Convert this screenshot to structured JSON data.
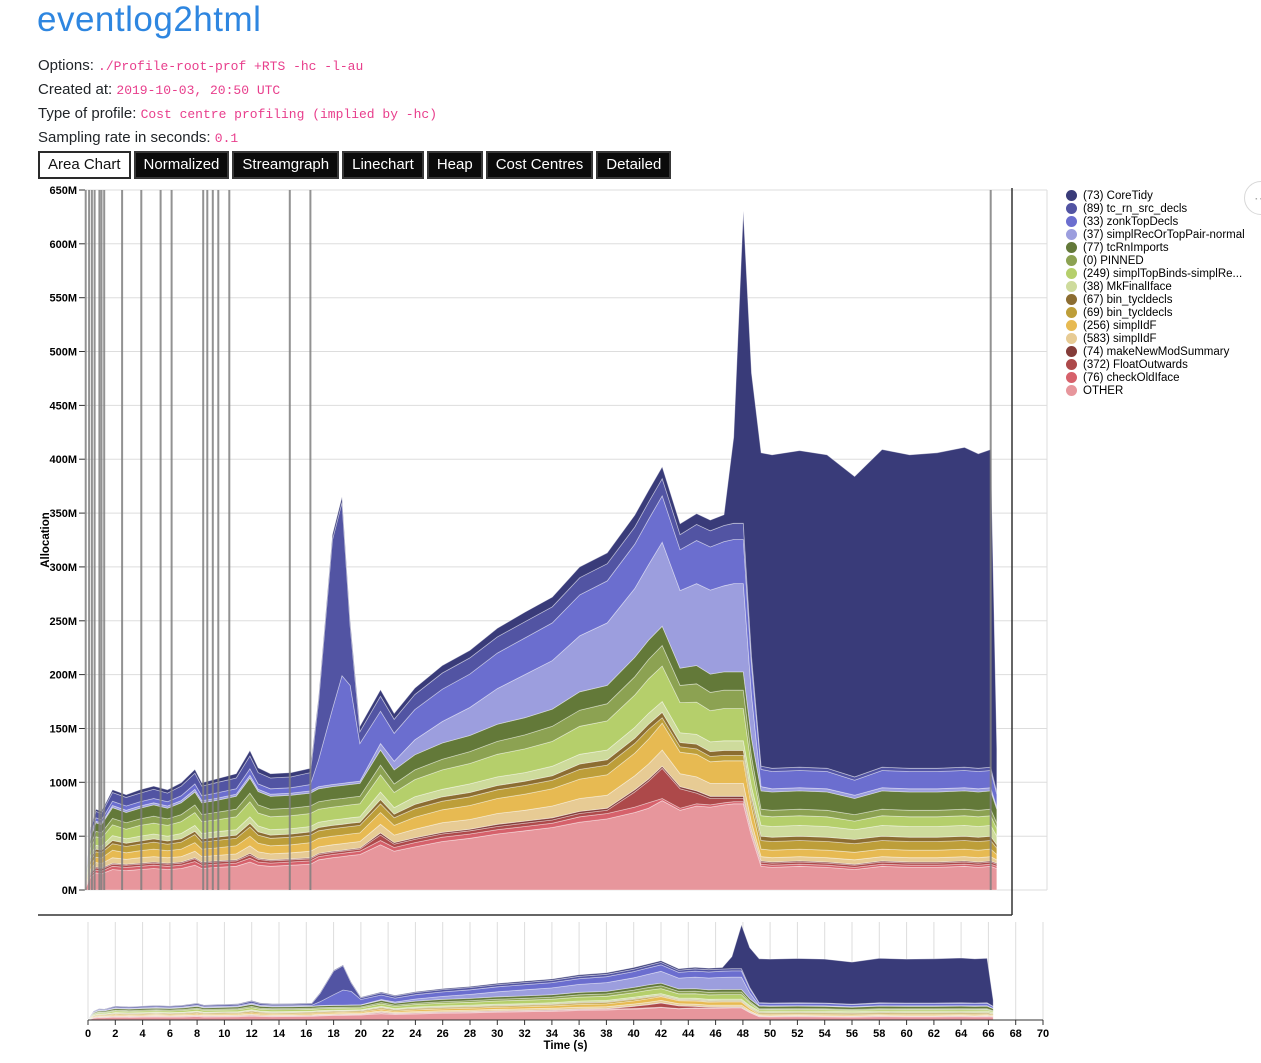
{
  "page": {
    "title": "eventlog2html"
  },
  "meta": [
    {
      "label": "Options: ",
      "value": "./Profile-root-prof +RTS -hc -l-au"
    },
    {
      "label": "Created at: ",
      "value": "2019-10-03, 20:50 UTC"
    },
    {
      "label": "Type of profile: ",
      "value": "Cost centre profiling (implied by -hc)"
    },
    {
      "label": "Sampling rate in seconds: ",
      "value": "0.1"
    }
  ],
  "tabs": [
    {
      "label": "Area Chart",
      "active": true
    },
    {
      "label": "Normalized",
      "active": false
    },
    {
      "label": "Streamgraph",
      "active": false
    },
    {
      "label": "Linechart",
      "active": false
    },
    {
      "label": "Heap",
      "active": false
    },
    {
      "label": "Cost Centres",
      "active": false
    },
    {
      "label": "Detailed",
      "active": false
    }
  ],
  "actions_button": {
    "icon": "ellipsis-menu",
    "glyph": "⋯"
  },
  "chart_data": {
    "type": "area",
    "title": "",
    "xlabel": "Time (s)",
    "ylabel": "Allocation",
    "x_domain": [
      0,
      70
    ],
    "y_domain": [
      0,
      650000000
    ],
    "grid": true,
    "legend_position": "right",
    "y_tick_values": [
      0,
      50,
      100,
      150,
      200,
      250,
      300,
      350,
      400,
      450,
      500,
      550,
      600,
      650
    ],
    "y_tick_labels": [
      "0M",
      "50M",
      "100M",
      "150M",
      "200M",
      "250M",
      "300M",
      "350M",
      "400M",
      "450M",
      "500M",
      "550M",
      "600M",
      "650M"
    ],
    "x_ticks": [
      0,
      2,
      4,
      6,
      8,
      10,
      12,
      14,
      16,
      18,
      20,
      22,
      24,
      26,
      28,
      30,
      32,
      34,
      36,
      38,
      40,
      42,
      44,
      46,
      48,
      50,
      52,
      54,
      56,
      58,
      60,
      62,
      64,
      66,
      68,
      70
    ],
    "event_times": [
      0.05,
      0.3,
      0.5,
      0.7,
      1.05,
      1.2,
      1.4,
      2.7,
      4.1,
      5.5,
      6.3,
      8.6,
      8.9,
      9.3,
      9.7,
      10.5,
      14.9,
      16.4,
      65.9
    ],
    "x": [
      0,
      0.4,
      0.8,
      1.2,
      2,
      3,
      4,
      5,
      6,
      7,
      8,
      8.5,
      9.5,
      11,
      12,
      12.6,
      13.5,
      15,
      16.4,
      17,
      18,
      18.7,
      19.3,
      20,
      21.5,
      22.5,
      24,
      26,
      28,
      30,
      32,
      34,
      36,
      38,
      40,
      41,
      42,
      43.3,
      44.5,
      45.5,
      46.5,
      47.2,
      47.9,
      48.5,
      49.2,
      50,
      52,
      54,
      56,
      58,
      60,
      62,
      64,
      65,
      65.9,
      66.35
    ],
    "units": "MB, stacked bottom-to-top",
    "series": [
      {
        "id": "other",
        "label": "OTHER",
        "color": "#e7969c",
        "values": [
          0.5,
          12,
          16,
          15,
          19,
          18,
          19,
          20,
          19,
          20,
          23,
          20,
          21,
          22,
          26,
          23,
          22,
          23,
          24,
          28,
          30,
          31,
          32,
          33,
          42,
          36,
          40,
          45,
          48,
          52,
          55,
          58,
          63,
          66,
          72,
          76,
          83,
          74,
          78,
          77,
          79,
          80,
          80,
          50,
          22,
          21,
          22,
          21,
          19,
          22,
          21,
          21,
          22,
          21,
          22,
          20
        ]
      },
      {
        "id": "checkOldIface",
        "label": "(76) checkOldIface",
        "color": "#d6616b",
        "values": [
          0.2,
          2,
          2.5,
          2.5,
          3,
          3,
          3,
          3,
          3,
          3,
          3.5,
          3,
          3,
          3,
          3.5,
          3,
          3,
          3,
          3,
          3,
          3,
          3,
          3,
          3,
          4,
          3.5,
          4,
          4,
          4,
          4,
          4,
          4,
          5,
          5,
          5,
          5,
          2,
          2,
          2,
          2,
          2,
          2,
          2,
          2,
          2,
          2,
          2,
          2,
          2,
          2,
          2,
          2,
          2,
          2,
          2,
          2
        ]
      },
      {
        "id": "FloatOutwards",
        "label": "(372) FloatOutwards",
        "color": "#ad494a",
        "values": [
          0.2,
          1.5,
          2,
          2,
          2,
          2,
          2,
          2,
          2,
          2,
          2.5,
          2,
          2,
          2,
          3,
          2.5,
          2,
          2,
          2,
          2,
          2,
          2,
          2,
          2,
          5,
          3,
          3,
          3,
          3,
          3,
          3,
          3,
          3,
          3,
          14,
          20,
          28,
          18,
          10,
          6,
          4,
          3,
          3,
          2,
          2,
          2,
          2,
          2,
          2,
          2,
          2,
          2,
          2,
          2,
          2,
          2
        ]
      },
      {
        "id": "makeNewModSummary",
        "label": "(74) makeNewModSummary",
        "color": "#843c39",
        "values": [
          0.1,
          1,
          1,
          1,
          1,
          1,
          1,
          1,
          1,
          1,
          1,
          1,
          1,
          1,
          1.5,
          1,
          1,
          1,
          1,
          1,
          1,
          1,
          1,
          1,
          2,
          1.5,
          1.5,
          1.5,
          1.5,
          2,
          2,
          2,
          2,
          2,
          2,
          2,
          2,
          2,
          2,
          2,
          2,
          2,
          2,
          1,
          1,
          1,
          1,
          1,
          1,
          1,
          1,
          1,
          1,
          1,
          1,
          1
        ]
      },
      {
        "id": "simplIdF-583",
        "label": "(583) simplIdF",
        "color": "#e7cb94",
        "values": [
          0.1,
          3,
          4,
          4,
          5,
          4.5,
          5,
          5,
          5,
          5,
          6,
          5,
          5,
          5.5,
          7,
          6,
          5.5,
          5.5,
          6,
          6,
          6,
          6,
          6,
          6,
          8,
          7,
          8,
          9,
          9,
          10,
          10,
          11,
          12,
          12,
          13,
          14,
          15,
          12,
          13,
          12,
          12,
          12,
          12,
          8,
          4,
          4,
          4,
          4,
          4,
          4,
          4,
          4,
          4,
          4,
          4,
          3
        ]
      },
      {
        "id": "simplIdF-256",
        "label": "(256) simplIdF",
        "color": "#e7ba52",
        "values": [
          0.2,
          4,
          5,
          5,
          7,
          6,
          6.5,
          7,
          6.5,
          7,
          8,
          7,
          7,
          7.5,
          9,
          8,
          7.5,
          7.5,
          8,
          8,
          8,
          8,
          8,
          8,
          11,
          9,
          11,
          12,
          13,
          14,
          15,
          16,
          18,
          19,
          21,
          23,
          25,
          20,
          21,
          20,
          21,
          21,
          21,
          14,
          7,
          7,
          7,
          7,
          7,
          7,
          7,
          7,
          7,
          7,
          7,
          5
        ]
      },
      {
        "id": "bin_tycldecls-69",
        "label": "(69) bin_tycldecls",
        "color": "#bd9e39",
        "values": [
          0.2,
          4,
          5,
          5,
          6,
          6,
          6,
          6.5,
          6,
          6.5,
          7.5,
          6.5,
          7,
          7,
          8.5,
          7.5,
          7,
          7,
          7,
          7,
          7,
          7,
          7,
          7,
          8,
          7,
          8,
          8,
          8,
          8,
          8,
          8,
          9,
          9,
          9,
          9,
          5,
          5,
          5,
          5,
          5,
          5,
          5,
          6,
          8,
          8,
          8,
          8,
          8,
          8,
          8,
          8,
          8,
          8,
          8,
          6
        ]
      },
      {
        "id": "bin_tycldecls-67",
        "label": "(67) bin_tycldecls",
        "color": "#8c6d31",
        "values": [
          0.1,
          2,
          2.5,
          2.5,
          3,
          3,
          3,
          3,
          3,
          3,
          3,
          3,
          3,
          3,
          3.5,
          3,
          3,
          3,
          3,
          3,
          3,
          3,
          3,
          3,
          4,
          3.5,
          4,
          4,
          4,
          4,
          4,
          4,
          5,
          5,
          5,
          5,
          5,
          4,
          4.5,
          4.5,
          4.5,
          4.5,
          4.5,
          4,
          4,
          4,
          4,
          4,
          4,
          4,
          4,
          4,
          4,
          4,
          4,
          3
        ]
      },
      {
        "id": "MkFinalIface",
        "label": "(38) MkFinalIface",
        "color": "#cedb9c",
        "values": [
          0.1,
          3,
          3.5,
          3.5,
          4.5,
          4,
          4.5,
          4.5,
          4.5,
          5,
          5.5,
          5,
          5,
          5,
          6,
          5.5,
          5,
          5,
          5,
          5,
          5,
          5,
          5,
          5,
          7,
          6,
          7,
          7,
          8,
          8,
          8,
          9,
          9,
          9,
          10,
          10,
          10,
          9,
          9,
          9,
          9,
          9,
          9,
          9,
          10,
          10,
          10,
          10,
          9,
          10,
          10,
          10,
          10,
          10,
          10,
          8
        ]
      },
      {
        "id": "simplTopBinds",
        "label": "(249) simplTopBinds-simplRe...",
        "color": "#b5cf6b",
        "values": [
          0.2,
          6,
          8,
          7.5,
          10,
          9,
          10,
          10,
          10,
          11,
          12,
          11,
          11,
          12,
          14,
          12,
          12,
          12,
          12,
          12,
          12,
          12,
          12,
          12,
          16,
          14,
          16,
          18,
          19,
          21,
          22,
          23,
          26,
          27,
          30,
          32,
          33,
          28,
          30,
          29,
          30,
          30,
          30,
          18,
          9,
          9,
          9,
          9,
          8,
          9,
          9,
          9,
          9,
          9,
          9,
          7
        ]
      },
      {
        "id": "PINNED",
        "label": "(0) PINNED",
        "color": "#8ca252",
        "values": [
          0.3,
          4,
          5,
          5,
          6,
          6,
          6,
          6.5,
          6,
          6.5,
          7,
          6.5,
          7,
          7,
          8,
          7.5,
          7,
          7,
          7,
          7,
          7,
          7,
          7,
          7,
          9,
          8,
          9,
          10,
          11,
          12,
          13,
          14,
          15,
          16,
          17,
          18,
          19,
          16,
          17,
          17,
          17,
          17,
          17,
          10,
          6,
          6,
          6,
          6,
          6,
          6,
          6,
          6,
          6,
          6,
          6,
          5
        ]
      },
      {
        "id": "tcRnImports",
        "label": "(77) tcRnImports",
        "color": "#637939",
        "values": [
          0.3,
          6,
          8,
          7.5,
          10,
          9.5,
          10,
          10.5,
          10,
          11,
          12,
          11,
          11,
          12,
          14,
          12.5,
          12,
          12,
          12,
          12,
          12,
          12,
          12,
          12,
          14,
          13,
          14,
          15,
          15,
          16,
          16,
          16,
          17,
          17,
          18,
          18,
          18,
          16,
          17,
          17,
          17,
          17,
          17,
          17,
          17,
          17,
          17,
          17,
          15,
          17,
          17,
          17,
          17,
          17,
          17,
          13
        ]
      },
      {
        "id": "simplRecOrTopPair",
        "label": "(37) simplRecOrTopPair-normal",
        "color": "#9c9ede",
        "values": [
          0,
          1,
          1.5,
          1.5,
          2,
          2,
          2,
          2,
          2,
          2,
          2.5,
          2,
          2,
          2,
          2.5,
          2,
          2,
          2,
          2,
          2,
          2,
          2,
          2,
          2,
          6,
          8,
          14,
          20,
          26,
          33,
          40,
          45,
          52,
          58,
          64,
          70,
          78,
          72,
          76,
          78,
          80,
          82,
          82,
          40,
          4,
          3,
          3,
          3,
          3,
          3,
          3,
          3,
          3,
          3,
          3,
          2
        ]
      },
      {
        "id": "zonkTopDecls",
        "label": "(33) zonkTopDecls",
        "color": "#6b6ecf",
        "values": [
          0,
          2,
          3,
          3,
          4,
          4,
          4,
          4,
          4,
          4.5,
          5,
          4.5,
          5,
          5,
          6,
          5,
          5,
          5,
          6,
          25,
          70,
          100,
          90,
          35,
          30,
          26,
          28,
          30,
          31,
          33,
          34,
          35,
          38,
          39,
          41,
          42,
          43,
          38,
          40,
          40,
          41,
          41,
          41,
          28,
          16,
          16,
          16,
          16,
          14,
          16,
          16,
          16,
          16,
          16,
          16,
          12
        ]
      },
      {
        "id": "tc_rn_src_decls",
        "label": "(89) tc_rn_src_decls",
        "color": "#5254a3",
        "values": [
          0,
          5,
          6,
          6,
          8,
          8,
          8,
          8.5,
          8,
          9,
          10,
          9,
          9.5,
          10,
          12,
          10.5,
          10,
          10,
          11,
          54,
          157,
          161,
          55,
          11,
          14,
          13,
          14,
          15,
          15,
          15,
          15,
          15,
          16,
          16,
          16,
          16,
          16,
          14,
          15,
          15,
          15,
          15,
          15,
          8,
          3,
          3,
          3,
          3,
          3,
          3,
          3,
          3,
          3,
          3,
          3,
          2
        ]
      },
      {
        "id": "CoreTidy",
        "label": "(73) CoreTidy",
        "color": "#393b79",
        "values": [
          0,
          1,
          2,
          2,
          2.5,
          2.5,
          3,
          3,
          3,
          3,
          3.5,
          3,
          3.5,
          4,
          5,
          4.5,
          4,
          4,
          4,
          4.5,
          5,
          5,
          5,
          5,
          6,
          5.5,
          6,
          7,
          7,
          8,
          9,
          9,
          10,
          10,
          11,
          11,
          11,
          10,
          10,
          10,
          10,
          80,
          290,
          263,
          291,
          291,
          294,
          291,
          279,
          295,
          291,
          293,
          297,
          292,
          295,
          40
        ]
      }
    ]
  }
}
